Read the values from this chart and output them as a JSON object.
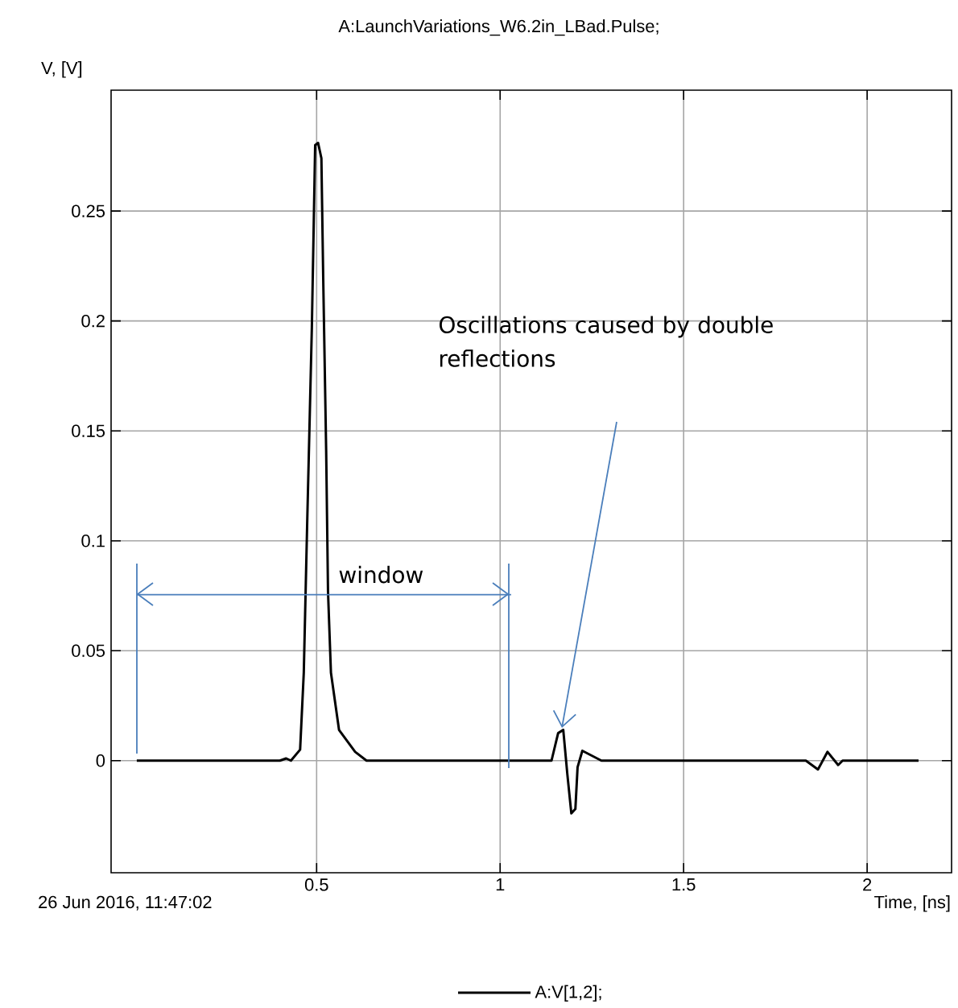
{
  "chart_data": {
    "type": "line",
    "title": "A:LaunchVariations_W6.2in_LBad.Pulse;",
    "xlabel": "Time, [ns]",
    "ylabel": "V, [V]",
    "annotations": [
      "26 Jun 2016, 11:47:02",
      "Oscillations caused by double reflections"
    ],
    "xlim": [
      -0.06,
      2.23
    ],
    "ylim": [
      -0.051,
      0.305
    ],
    "xticks": [
      0.5,
      1,
      1.5,
      2
    ],
    "yticks": [
      0,
      0.05,
      0.1,
      0.15,
      0.2,
      0.25
    ],
    "grid": true,
    "legend": "bottom",
    "marker": "none",
    "line_style": "solid",
    "series": [
      {
        "name": "A:V[1,2];",
        "color": "#000000",
        "x": [
          0.01,
          0.4,
          0.417,
          0.43,
          0.455,
          0.465,
          0.474,
          0.487,
          0.496,
          0.504,
          0.513,
          0.518,
          0.526,
          0.531,
          0.539,
          0.561,
          0.605,
          0.636,
          1.14,
          1.158,
          1.172,
          1.183,
          1.194,
          1.205,
          1.211,
          1.224,
          1.276,
          1.833,
          1.866,
          1.892,
          1.921,
          1.933,
          2.14
        ],
        "values": [
          0,
          0,
          0.001,
          0,
          0.005,
          0.04,
          0.106,
          0.197,
          0.28,
          0.281,
          0.274,
          0.219,
          0.141,
          0.077,
          0.04,
          0.014,
          0.004,
          0,
          0,
          0.0125,
          0.014,
          -0.006,
          -0.024,
          -0.022,
          -0.003,
          0.0045,
          0,
          0,
          -0.004,
          0.004,
          -0.002,
          0,
          0
        ]
      },
      {
        "name": "window",
        "type": "line",
        "color": "#4a7ebb",
        "x": [
          0.01,
          1.03
        ],
        "values": [
          0.0755,
          0.0755
        ]
      }
    ]
  }
}
